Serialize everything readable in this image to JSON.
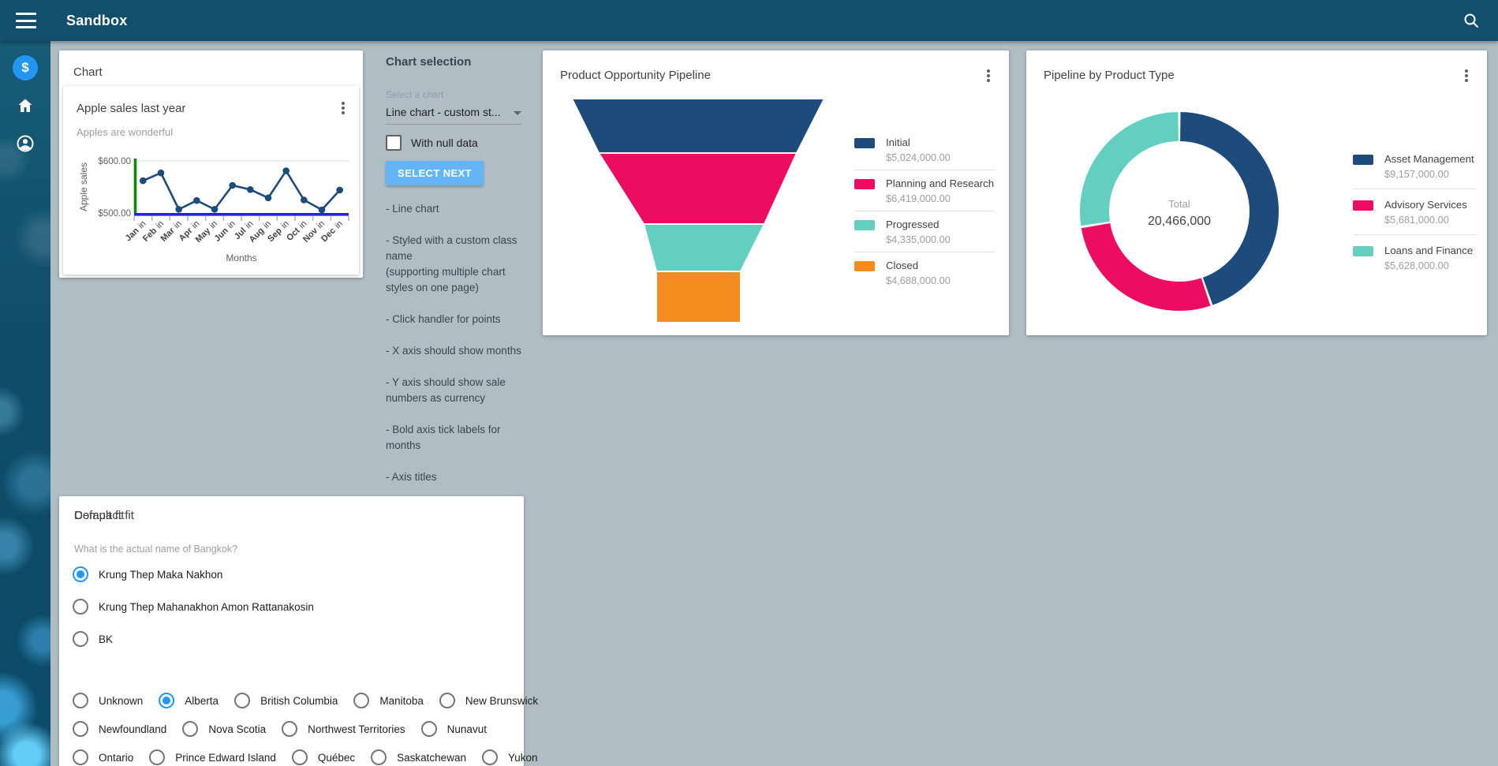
{
  "topbar": {
    "title": "Sandbox"
  },
  "sidebar": {
    "items": [
      {
        "name": "money"
      },
      {
        "name": "home"
      },
      {
        "name": "account"
      }
    ]
  },
  "chart_panel": {
    "panel_title": "Chart",
    "card": {
      "title": "Apple sales last year",
      "subtitle": "Apples are wonderful",
      "y_axis_title": "Apple sales",
      "x_axis_title": "Months",
      "y_ticks": [
        "$600.00",
        "$500.00"
      ],
      "y_min": 500,
      "y_max": 600,
      "x_tick_suffix": "in",
      "months": [
        "Jan",
        "Feb",
        "Mar",
        "Apr",
        "May",
        "Jun",
        "Jul",
        "Aug",
        "Sep",
        "Oct",
        "Nov",
        "Dec"
      ],
      "values": [
        562,
        577,
        507,
        524,
        507,
        553,
        545,
        529,
        581,
        525,
        506,
        544
      ],
      "colors": {
        "line": "#1d4b7c",
        "y_axis": "#0f8a0f",
        "x_axis": "#2020e8",
        "grid": "#e3e3e3",
        "tick": "#a9b4e0"
      }
    }
  },
  "chart_selection": {
    "title": "Chart selection",
    "select_label": "Select a chart",
    "select_value": "Line chart - custom st...",
    "checkbox_label": "With null data",
    "checkbox_checked": false,
    "button_label": "SELECT NEXT",
    "notes": [
      "- Line chart",
      "- Styled with a custom class\nname\n(supporting multiple chart\nstyles on one page)",
      "- Click handler for points",
      "- X axis should show months",
      "- Y axis should show sale\nnumbers as currency",
      "- Bold axis tick labels for\nmonths",
      "- Axis titles"
    ]
  },
  "funnel_card": {
    "title": "Product Opportunity Pipeline",
    "segments": [
      {
        "label": "Initial",
        "value": "$5,024,000.00",
        "amount": 5024000,
        "color": "#1d4b7c"
      },
      {
        "label": "Planning and Research",
        "value": "$6,419,000.00",
        "amount": 6419000,
        "color": "#ec0d63"
      },
      {
        "label": "Progressed",
        "value": "$4,335,000.00",
        "amount": 4335000,
        "color": "#63cfc1"
      },
      {
        "label": "Closed",
        "value": "$4,688,000.00",
        "amount": 4688000,
        "color": "#f78c1e"
      }
    ]
  },
  "donut_card": {
    "title": "Pipeline by Product Type",
    "center_label": "Total",
    "center_value": "20,466,000",
    "segments": [
      {
        "label": "Asset Management",
        "value": "$9,157,000.00",
        "amount": 9157000,
        "color": "#1d4b7c"
      },
      {
        "label": "Advisory Services",
        "value": "$5,681,000.00",
        "amount": 5681000,
        "color": "#ec0d63"
      },
      {
        "label": "Loans and Finance",
        "value": "$5,628,000.00",
        "amount": 5628000,
        "color": "#63cfc1"
      }
    ]
  },
  "default_fit": {
    "title": "Default fit",
    "question": "What is the actual name of Bangkok?",
    "options": [
      {
        "label": "Krung Thep Maka Nakhon",
        "selected": true
      },
      {
        "label": "Krung Thep Mahanakhon Amon Rattanakosin",
        "selected": false
      },
      {
        "label": "BK",
        "selected": false
      }
    ]
  },
  "compact_fit": {
    "title": "Compact fit",
    "rows": [
      [
        {
          "label": "Unknown"
        },
        {
          "label": "Alberta",
          "selected": true
        },
        {
          "label": "British Columbia"
        },
        {
          "label": "Manitoba"
        },
        {
          "label": "New Brunswick"
        }
      ],
      [
        {
          "label": "Newfoundland"
        },
        {
          "label": "Nova Scotia"
        },
        {
          "label": "Northwest Territories"
        },
        {
          "label": "Nunavut"
        }
      ],
      [
        {
          "label": "Ontario"
        },
        {
          "label": "Prince Edward Island"
        },
        {
          "label": "Québec"
        },
        {
          "label": "Saskatchewan"
        },
        {
          "label": "Yukon"
        }
      ]
    ]
  },
  "chart_data": [
    {
      "type": "line",
      "title": "Apple sales last year",
      "subtitle": "Apples are wonderful",
      "x": [
        "Jan",
        "Feb",
        "Mar",
        "Apr",
        "May",
        "Jun",
        "Jul",
        "Aug",
        "Sep",
        "Oct",
        "Nov",
        "Dec"
      ],
      "values": [
        562,
        577,
        507,
        524,
        507,
        553,
        545,
        529,
        581,
        525,
        506,
        544
      ],
      "xlabel": "Months",
      "ylabel": "Apple sales",
      "ylim": [
        500,
        600
      ],
      "y_tick_format": "currency"
    },
    {
      "type": "funnel",
      "title": "Product Opportunity Pipeline",
      "categories": [
        "Initial",
        "Planning and Research",
        "Progressed",
        "Closed"
      ],
      "values": [
        5024000,
        6419000,
        4335000,
        4688000
      ],
      "legend_position": "right"
    },
    {
      "type": "pie",
      "title": "Pipeline by Product Type",
      "categories": [
        "Asset Management",
        "Advisory Services",
        "Loans and Finance"
      ],
      "values": [
        9157000,
        5681000,
        5628000
      ],
      "total": 20466000,
      "center_label": "Total",
      "legend_position": "right"
    }
  ]
}
